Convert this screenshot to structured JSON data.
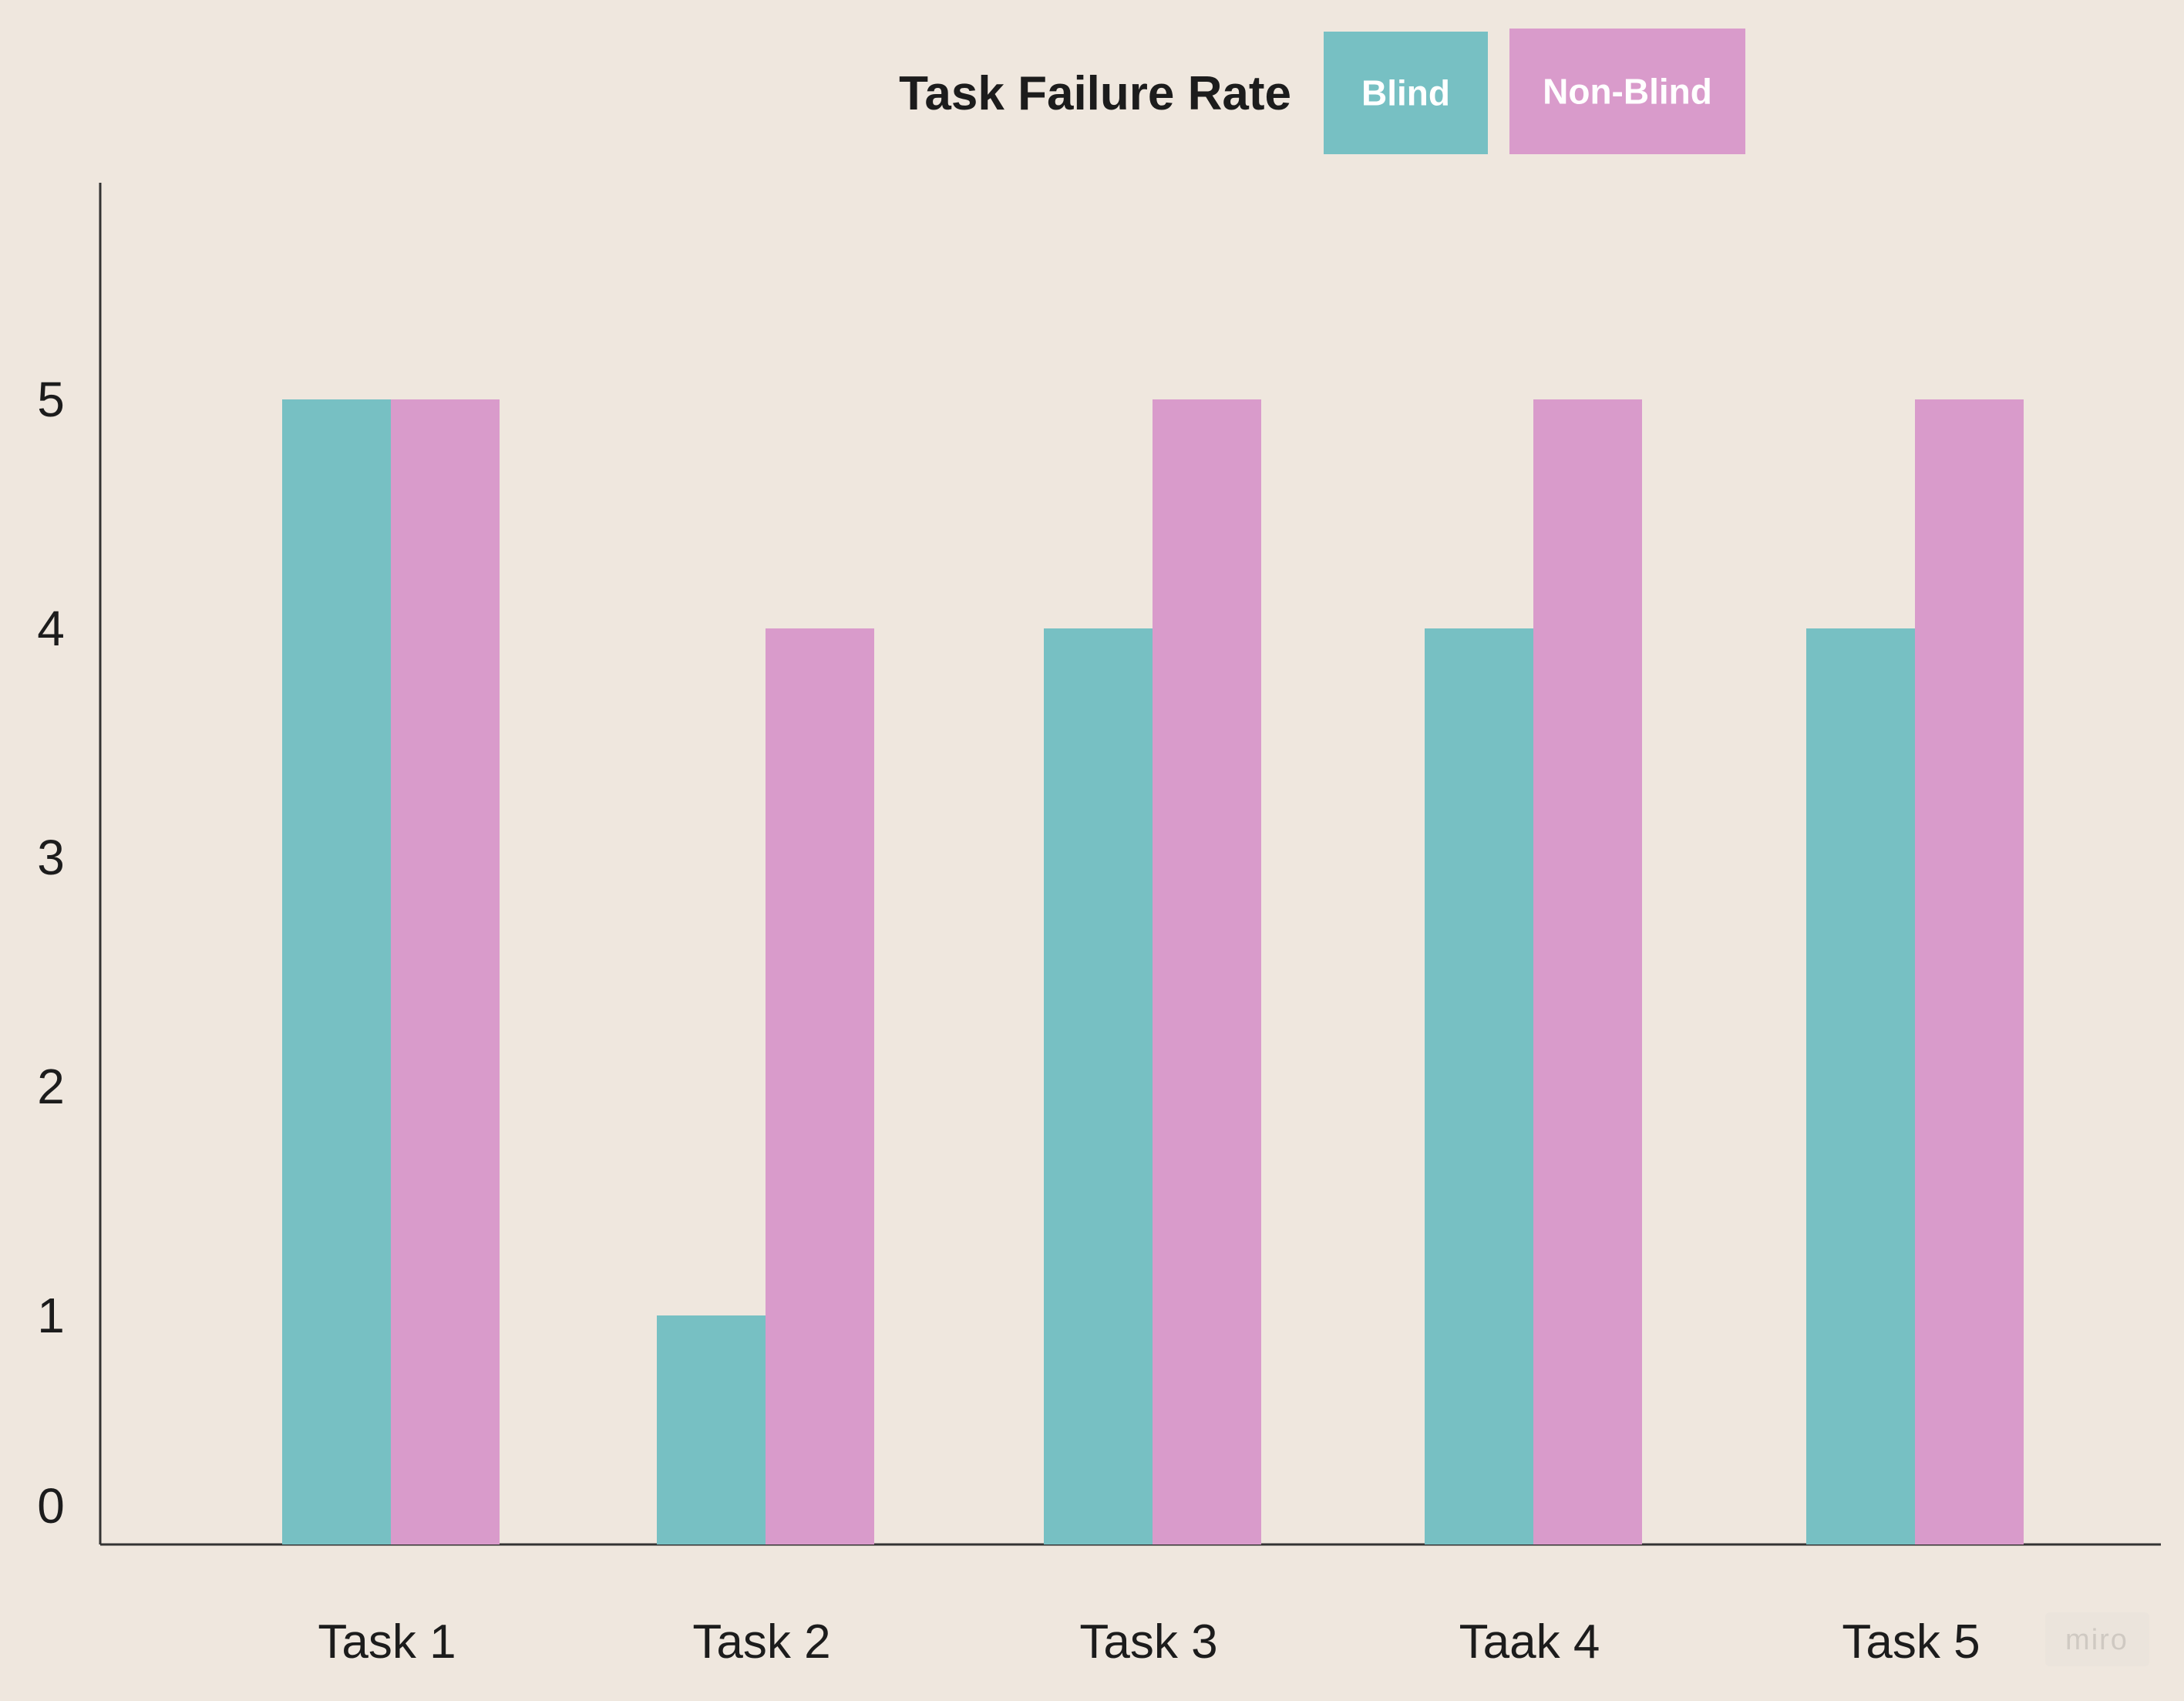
{
  "chart_data": {
    "type": "bar",
    "title": "Task Failure Rate",
    "categories": [
      "Task 1",
      "Task 2",
      "Task 3",
      "Taak 4",
      "Task 5"
    ],
    "series": [
      {
        "name": "Blind",
        "color": "#77c0c3",
        "values": [
          5,
          1,
          4,
          4,
          4
        ]
      },
      {
        "name": "Non-Blind",
        "color": "#d99bcb",
        "values": [
          5,
          4,
          5,
          5,
          5
        ]
      }
    ],
    "y_ticks": [
      "0",
      "1",
      "2",
      "3",
      "4",
      "5"
    ],
    "ylim": [
      0,
      5.8
    ],
    "xlabel": "",
    "ylabel": "",
    "grid": false,
    "legend_position": "top-right of title"
  },
  "watermark": "miro",
  "colors": {
    "background": "#efe7de",
    "axis": "#333333",
    "text": "#1c1c1c"
  }
}
